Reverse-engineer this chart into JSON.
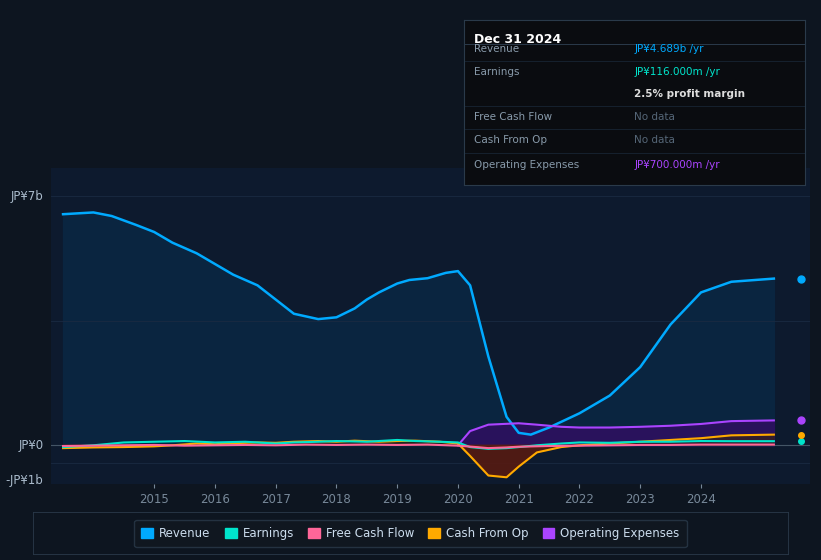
{
  "background_color": "#0d1520",
  "chart_bg_color": "#0d1a2e",
  "grid_color": "#1a2a42",
  "ylim": [
    -1100000000.0,
    7800000000.0
  ],
  "xlim_start": 2013.3,
  "xlim_end": 2025.8,
  "xticks": [
    2015,
    2016,
    2017,
    2018,
    2019,
    2020,
    2021,
    2022,
    2023,
    2024
  ],
  "ylabel_top": "JP¥7b",
  "ylabel_zero": "JP¥0",
  "ylabel_neg": "-JP¥1b",
  "yticks": [
    7000000000.0,
    0,
    -1000000000.0
  ],
  "series": {
    "revenue": {
      "color": "#00aaff",
      "fill_color": "#0a2540",
      "label": "Revenue",
      "x": [
        2013.5,
        2014.0,
        2014.3,
        2014.7,
        2015.0,
        2015.3,
        2015.7,
        2016.0,
        2016.3,
        2016.7,
        2017.0,
        2017.3,
        2017.7,
        2018.0,
        2018.3,
        2018.5,
        2018.7,
        2019.0,
        2019.2,
        2019.5,
        2019.8,
        2020.0,
        2020.2,
        2020.5,
        2020.8,
        2021.0,
        2021.2,
        2021.5,
        2022.0,
        2022.5,
        2023.0,
        2023.5,
        2024.0,
        2024.5,
        2025.2
      ],
      "y": [
        6500000000.0,
        6550000000.0,
        6450000000.0,
        6200000000.0,
        6000000000.0,
        5700000000.0,
        5400000000.0,
        5100000000.0,
        4800000000.0,
        4500000000.0,
        4100000000.0,
        3700000000.0,
        3550000000.0,
        3600000000.0,
        3850000000.0,
        4100000000.0,
        4300000000.0,
        4550000000.0,
        4650000000.0,
        4700000000.0,
        4850000000.0,
        4900000000.0,
        4500000000.0,
        2500000000.0,
        800000000.0,
        350000000.0,
        300000000.0,
        500000000.0,
        900000000.0,
        1400000000.0,
        2200000000.0,
        3400000000.0,
        4300000000.0,
        4600000000.0,
        4689000000.0
      ]
    },
    "earnings": {
      "color": "#00e5cc",
      "label": "Earnings",
      "x": [
        2013.5,
        2014.0,
        2014.5,
        2015.0,
        2015.5,
        2016.0,
        2016.5,
        2017.0,
        2017.3,
        2017.7,
        2018.0,
        2018.5,
        2019.0,
        2019.3,
        2019.7,
        2020.0,
        2020.2,
        2020.5,
        2020.8,
        2021.0,
        2021.3,
        2021.7,
        2022.0,
        2022.5,
        2023.0,
        2023.5,
        2024.0,
        2024.5,
        2025.2
      ],
      "y": [
        -50000000.0,
        0.0,
        80000000.0,
        100000000.0,
        120000000.0,
        80000000.0,
        100000000.0,
        50000000.0,
        80000000.0,
        100000000.0,
        120000000.0,
        100000000.0,
        150000000.0,
        120000000.0,
        100000000.0,
        80000000.0,
        -50000000.0,
        -100000000.0,
        -80000000.0,
        -50000000.0,
        0.0,
        50000000.0,
        80000000.0,
        70000000.0,
        100000000.0,
        100000000.0,
        120000000.0,
        116000000.0,
        116000000.0
      ]
    },
    "free_cash_flow": {
      "color": "#ff6699",
      "label": "Free Cash Flow",
      "x": [
        2013.5,
        2014.0,
        2014.5,
        2015.0,
        2015.5,
        2016.0,
        2016.5,
        2017.0,
        2017.5,
        2018.0,
        2018.5,
        2019.0,
        2019.5,
        2020.0,
        2020.3,
        2020.5,
        2020.8,
        2021.0,
        2021.5,
        2022.0,
        2022.5,
        2023.0,
        2023.5,
        2024.0,
        2024.5,
        2025.2
      ],
      "y": [
        -20000000.0,
        -10000000.0,
        0.0,
        10000000.0,
        -10000000.0,
        0.0,
        10000000.0,
        0.0,
        20000000.0,
        10000000.0,
        20000000.0,
        10000000.0,
        20000000.0,
        -10000000.0,
        -50000000.0,
        -80000000.0,
        -60000000.0,
        -40000000.0,
        -20000000.0,
        -10000000.0,
        0.0,
        10000000.0,
        10000000.0,
        20000000.0,
        20000000.0,
        20000000.0
      ]
    },
    "cash_from_op": {
      "color": "#ffaa00",
      "fill_color_neg": "#5a1a10",
      "label": "Cash From Op",
      "x": [
        2013.5,
        2014.0,
        2014.5,
        2015.0,
        2015.3,
        2015.7,
        2016.0,
        2016.3,
        2016.7,
        2017.0,
        2017.3,
        2017.7,
        2018.0,
        2018.3,
        2018.7,
        2019.0,
        2019.3,
        2019.7,
        2020.0,
        2020.2,
        2020.5,
        2020.8,
        2021.0,
        2021.3,
        2021.7,
        2022.0,
        2022.5,
        2023.0,
        2023.5,
        2024.0,
        2024.5,
        2025.2
      ],
      "y": [
        -80000000.0,
        -60000000.0,
        -50000000.0,
        -30000000.0,
        0.0,
        50000000.0,
        30000000.0,
        60000000.0,
        80000000.0,
        70000000.0,
        100000000.0,
        120000000.0,
        100000000.0,
        130000000.0,
        100000000.0,
        120000000.0,
        130000000.0,
        100000000.0,
        50000000.0,
        -300000000.0,
        -850000000.0,
        -900000000.0,
        -600000000.0,
        -200000000.0,
        -50000000.0,
        0.0,
        50000000.0,
        100000000.0,
        150000000.0,
        200000000.0,
        280000000.0,
        300000000.0
      ]
    },
    "operating_expenses": {
      "color": "#aa44ff",
      "fill_color": "#2d1060",
      "label": "Operating Expenses",
      "x": [
        2020.0,
        2020.2,
        2020.5,
        2021.0,
        2021.3,
        2021.7,
        2022.0,
        2022.5,
        2023.0,
        2023.5,
        2024.0,
        2024.5,
        2025.2
      ],
      "y": [
        0.0,
        400000000.0,
        580000000.0,
        620000000.0,
        580000000.0,
        520000000.0,
        500000000.0,
        500000000.0,
        520000000.0,
        550000000.0,
        600000000.0,
        680000000.0,
        700000000.0
      ]
    }
  },
  "info_box": {
    "title": "Dec 31 2024",
    "rows": [
      {
        "label": "Revenue",
        "value": "JP¥4.689b /yr",
        "value_color": "#00aaff"
      },
      {
        "label": "Earnings",
        "value": "JP¥116.000m /yr",
        "value_color": "#00e5cc"
      },
      {
        "label": "",
        "value": "2.5% profit margin",
        "value_color": "#dddddd",
        "bold": true
      },
      {
        "label": "Free Cash Flow",
        "value": "No data",
        "value_color": "#556677"
      },
      {
        "label": "Cash From Op",
        "value": "No data",
        "value_color": "#556677"
      },
      {
        "label": "Operating Expenses",
        "value": "JP¥700.000m /yr",
        "value_color": "#aa44ff"
      }
    ]
  },
  "legend": [
    {
      "label": "Revenue",
      "color": "#00aaff"
    },
    {
      "label": "Earnings",
      "color": "#00e5cc"
    },
    {
      "label": "Free Cash Flow",
      "color": "#ff6699"
    },
    {
      "label": "Cash From Op",
      "color": "#ffaa00"
    },
    {
      "label": "Operating Expenses",
      "color": "#aa44ff"
    }
  ]
}
